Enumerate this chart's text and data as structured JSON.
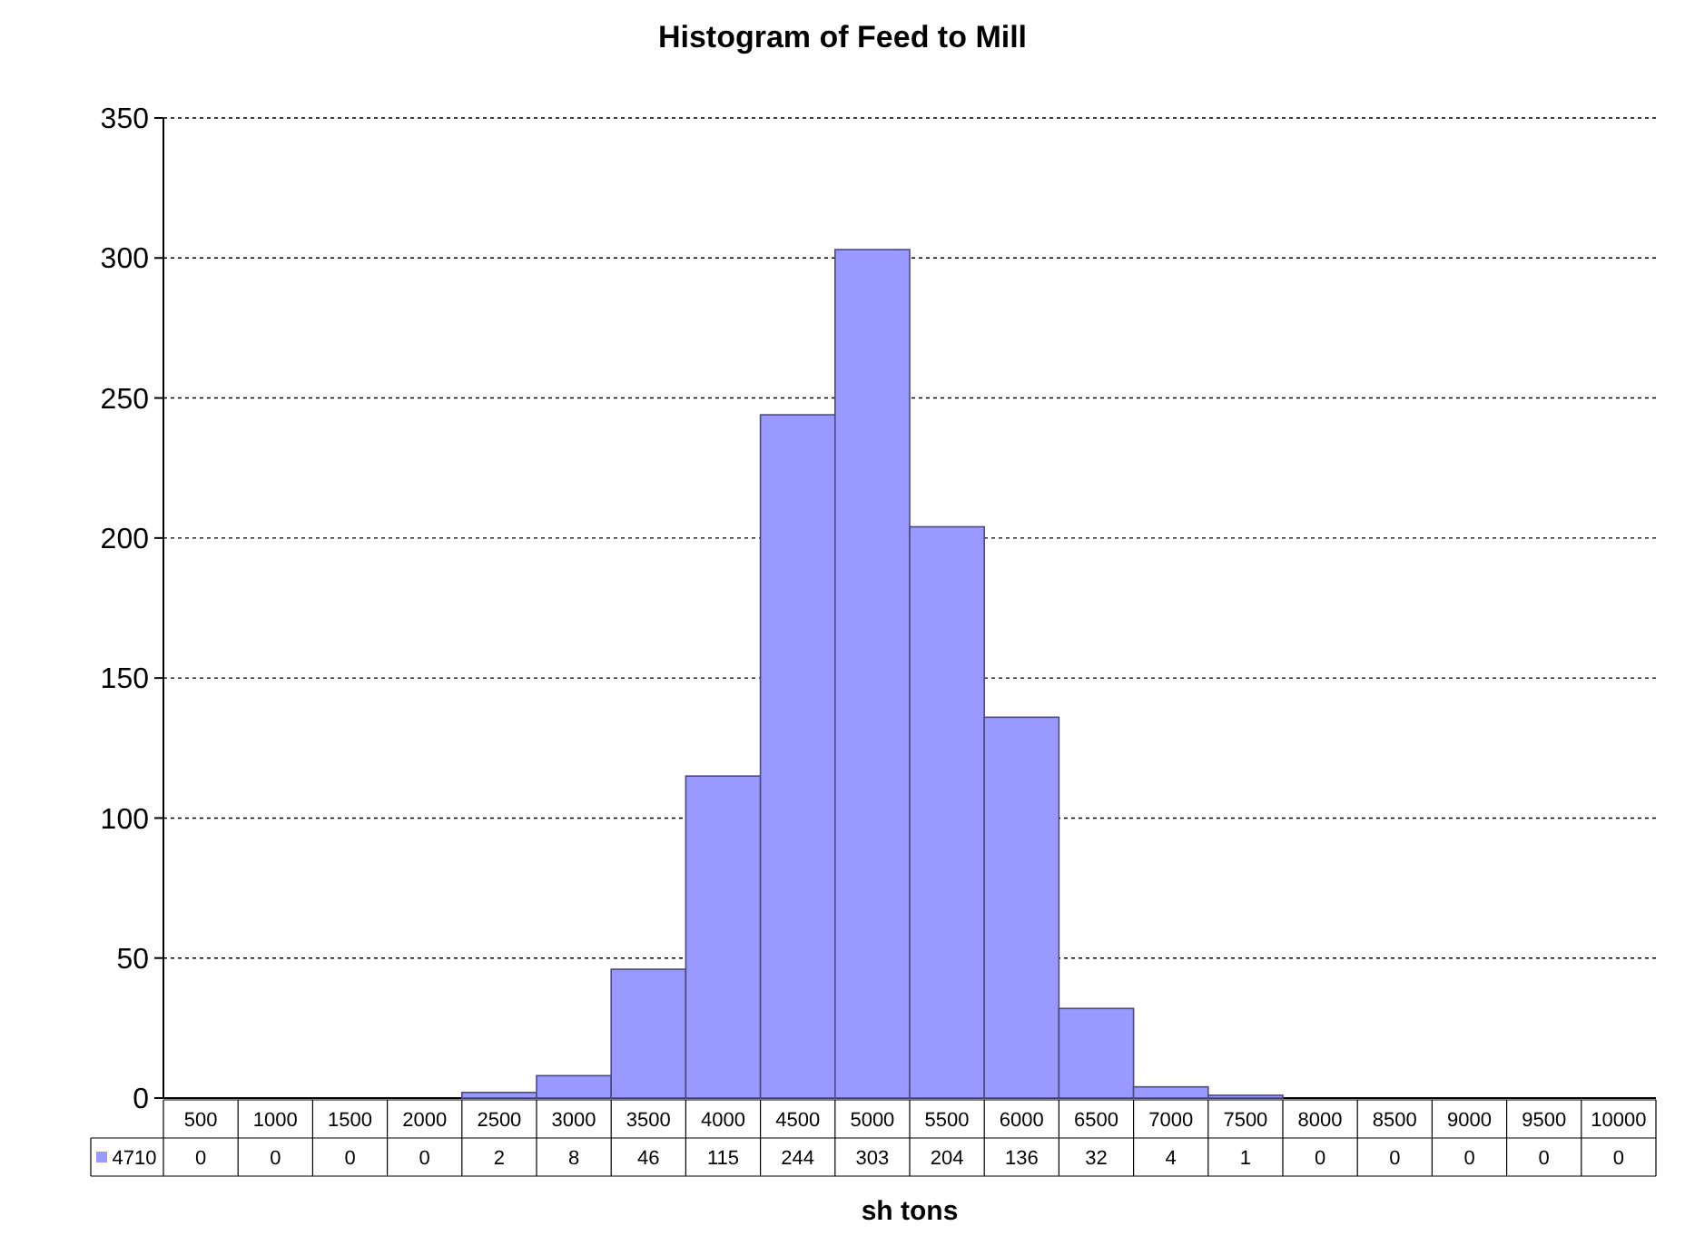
{
  "chart_data": {
    "type": "bar",
    "title": "Histogram of Feed to Mill",
    "xlabel": "sh tons",
    "categories": [
      "500",
      "1000",
      "1500",
      "2000",
      "2500",
      "3000",
      "3500",
      "4000",
      "4500",
      "5000",
      "5500",
      "6000",
      "6500",
      "7000",
      "7500",
      "8000",
      "8500",
      "9000",
      "9500",
      "10000"
    ],
    "series": [
      {
        "name": "4710",
        "color": "#9999ff",
        "values": [
          0,
          0,
          0,
          0,
          2,
          8,
          46,
          115,
          244,
          303,
          204,
          136,
          32,
          4,
          1,
          0,
          0,
          0,
          0,
          0
        ]
      }
    ],
    "ylim": [
      0,
      350
    ],
    "yticks": [
      0,
      50,
      100,
      150,
      200,
      250,
      300,
      350
    ],
    "grid": "y",
    "data_labels": true,
    "legend": "bottom"
  }
}
